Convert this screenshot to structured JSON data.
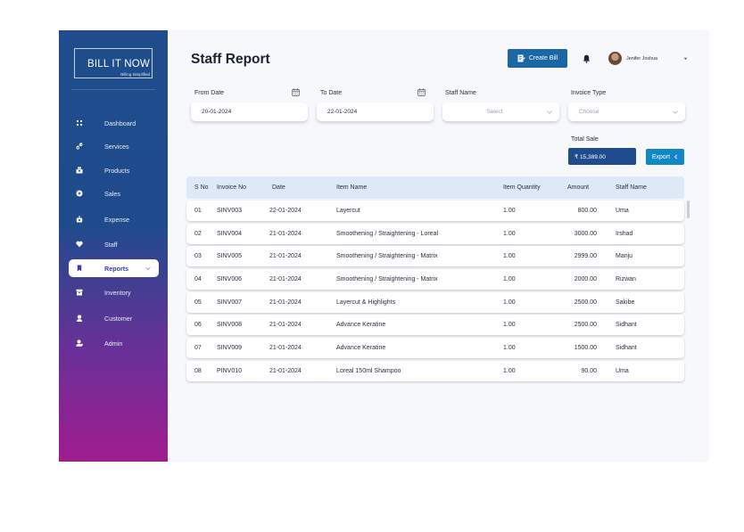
{
  "brand": {
    "title": "BILL IT NOW",
    "tagline": "Billing Simplified"
  },
  "sidebar": {
    "items": [
      {
        "label": "Dashboard",
        "icon": "grid-icon"
      },
      {
        "label": "Services",
        "icon": "link-icon"
      },
      {
        "label": "Products",
        "icon": "products-icon"
      },
      {
        "label": "Sales",
        "icon": "sales-icon"
      },
      {
        "label": "Expense",
        "icon": "expense-icon"
      },
      {
        "label": "Staff",
        "icon": "staff-icon"
      },
      {
        "label": "Reports",
        "icon": "bookmark-icon",
        "active": true
      },
      {
        "label": "Inventory",
        "icon": "inventory-icon"
      },
      {
        "label": "Customer",
        "icon": "customer-icon"
      },
      {
        "label": "Admin",
        "icon": "admin-icon"
      }
    ]
  },
  "header": {
    "title": "Staff Report",
    "create_bill_label": "Create Bill",
    "user_name": "Jenifer Joshua"
  },
  "filters": {
    "from_date_label": "From Date",
    "from_date_value": "20-01-2024",
    "to_date_label": "To Date",
    "to_date_value": "22-01-2024",
    "staff_name_label": "Staff Name",
    "staff_name_placeholder": "Select",
    "invoice_type_label": "Invoice Type",
    "invoice_type_placeholder": "Choose"
  },
  "summary": {
    "total_sale_label": "Total Sale",
    "total_sale_value": "₹ 15,389.00",
    "export_label": "Export"
  },
  "table": {
    "columns": [
      "S No",
      "Invoice No",
      "Date",
      "Item Name",
      "Item Quantity",
      "Amount",
      "Staff Name"
    ],
    "rows": [
      [
        "01",
        "SINV003",
        "22-01-2024",
        "Layercut",
        "1.00",
        "800.00",
        "Uma"
      ],
      [
        "02",
        "SINV004",
        "21-01-2024",
        "Smoothening / Straightening - Loreal",
        "1.00",
        "3000.00",
        "Irshad"
      ],
      [
        "03",
        "SINV005",
        "21-01-2024",
        "Smoothening / Straightening - Matrix",
        "1.00",
        "2999.00",
        "Manju"
      ],
      [
        "04",
        "SINV006",
        "21-01-2024",
        "Smoothening / Straightening - Matrix",
        "1.00",
        "2000.00",
        "Rizwan"
      ],
      [
        "05",
        "SINV007",
        "21-01-2024",
        "Layercut & Highlights",
        "1.00",
        "2500.00",
        "Sakibe"
      ],
      [
        "06",
        "SINV008",
        "21-01-2024",
        "Advance Keratine",
        "1.00",
        "2500.00",
        "Sidhant"
      ],
      [
        "07",
        "SINV009",
        "21-01-2024",
        "Advance Keratine",
        "1.00",
        "1500.00",
        "Sidhant"
      ],
      [
        "08",
        "PINV010",
        "21-01-2024",
        "Loreal 150ml Shampoo",
        "1.00",
        "90.00",
        "Uma"
      ]
    ]
  },
  "colors": {
    "sidebar_top": "#1e4c8c",
    "sidebar_bottom": "#a01d8e",
    "accent": "#1187c4",
    "header_row": "#dde9f6"
  }
}
